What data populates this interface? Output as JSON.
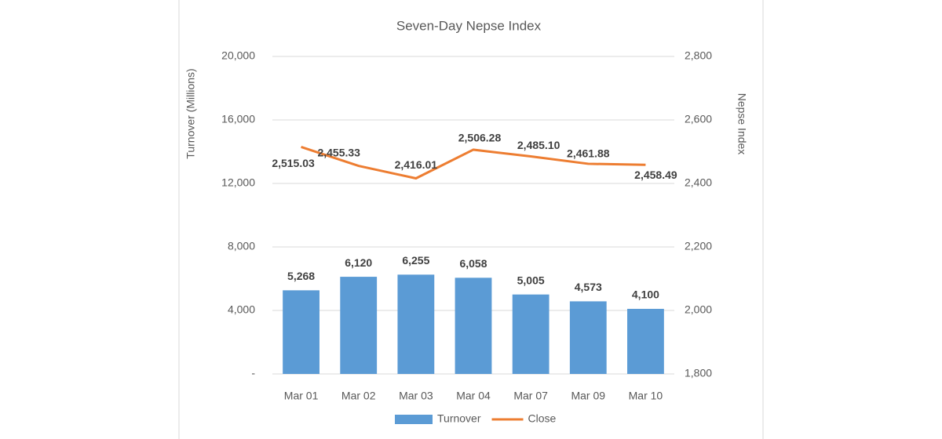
{
  "chart_data": {
    "type": "combo",
    "title": "Seven-Day Nepse Index",
    "y_label": "Turnover  (Millions)",
    "y2_label": "Nepse Index",
    "categories": [
      "Mar 01",
      "Mar 02",
      "Mar 03",
      "Mar 04",
      "Mar 07",
      "Mar 09",
      "Mar 10"
    ],
    "series": [
      {
        "name": "Turnover",
        "type": "bar",
        "color": "#5b9bd5",
        "values": [
          5268,
          6120,
          6255,
          6058,
          5005,
          4573,
          4100
        ],
        "value_labels": [
          "5,268",
          "6,120",
          "6,255",
          "6,058",
          "5,005",
          "4,573",
          "4,100"
        ]
      },
      {
        "name": "Close",
        "type": "line",
        "axis": "y2",
        "color": "#ed7d31",
        "values": [
          2515.03,
          2455.33,
          2416.01,
          2506.28,
          2485.1,
          2461.88,
          2458.49
        ],
        "value_labels": [
          "2,515.03",
          "2,455.33",
          "2,416.01",
          "2,506.28",
          "2,485.10",
          "2,461.88",
          "2,458.49"
        ]
      }
    ],
    "ylim": [
      0,
      20000
    ],
    "yticks": [
      {
        "value": 0,
        "label": "-"
      },
      {
        "value": 4000,
        "label": "4,000"
      },
      {
        "value": 8000,
        "label": "8,000"
      },
      {
        "value": 12000,
        "label": "12,000"
      },
      {
        "value": 16000,
        "label": "16,000"
      },
      {
        "value": 20000,
        "label": "20,000"
      }
    ],
    "y2lim": [
      1800,
      2800
    ],
    "y2ticks": [
      {
        "value": 1800,
        "label": "1,800"
      },
      {
        "value": 2000,
        "label": "2,000"
      },
      {
        "value": 2200,
        "label": "2,200"
      },
      {
        "value": 2400,
        "label": "2,400"
      },
      {
        "value": 2600,
        "label": "2,600"
      },
      {
        "value": 2800,
        "label": "2,800"
      }
    ],
    "grid": true,
    "legend": "bottom"
  }
}
